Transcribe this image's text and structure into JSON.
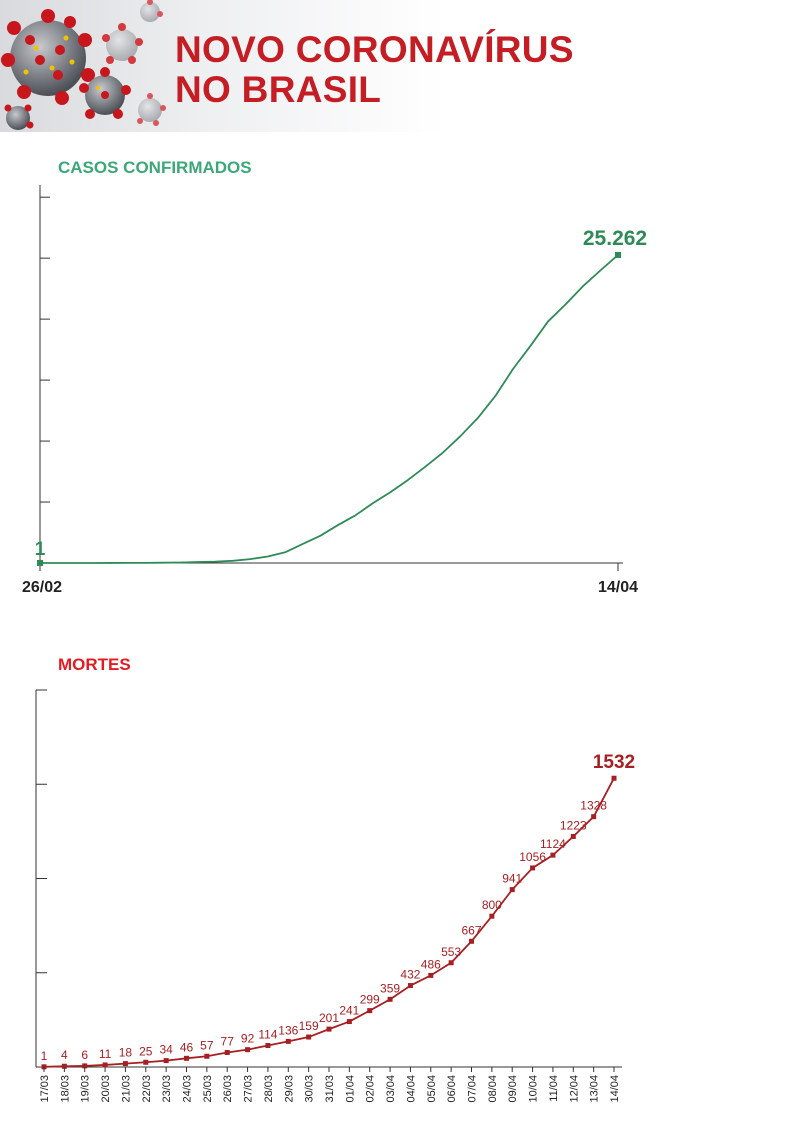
{
  "header": {
    "title_line1": "NOVO CORONAVÍRUS",
    "title_line2": "NO BRASIL"
  },
  "colors": {
    "title": "#c41e24",
    "cases": "#2e8b57",
    "cases_label": "#3aa877",
    "deaths": "#a61f23",
    "deaths_label": "#e31c24"
  },
  "icons": {
    "header_image": "coronavirus-illustration"
  },
  "chart_data": [
    {
      "type": "line",
      "title": "CASOS CONFIRMADOS",
      "x_tick_labels": [
        "26/02",
        "14/04"
      ],
      "x": [
        "26/02",
        "14/04"
      ],
      "y_first": 1,
      "y_last": 25262,
      "first_label": "1",
      "last_label": "25.262",
      "curve_y": [
        1,
        1,
        1,
        2,
        4,
        8,
        13,
        25,
        40,
        77,
        110,
        180,
        320,
        530,
        880,
        1560,
        2230,
        3100,
        3900,
        4900,
        5800,
        6800,
        7900,
        9050,
        10400,
        11900,
        13700,
        15900,
        17800,
        19800,
        21200,
        22700,
        24000,
        25262
      ],
      "ylim": [
        0,
        31000
      ],
      "y_ticks": [
        0,
        5000,
        10000,
        15000,
        20000,
        25000,
        30000
      ],
      "grid": false
    },
    {
      "type": "line",
      "title": "MORTES",
      "categories": [
        "17/03",
        "18/03",
        "19/03",
        "20/03",
        "21/03",
        "22/03",
        "23/03",
        "24/03",
        "25/03",
        "26/03",
        "27/03",
        "28/03",
        "29/03",
        "30/03",
        "31/03",
        "01/04",
        "02/04",
        "03/04",
        "04/04",
        "05/04",
        "06/04",
        "07/04",
        "08/04",
        "09/04",
        "10/04",
        "11/04",
        "12/04",
        "13/04",
        "14/04"
      ],
      "values": [
        1,
        4,
        6,
        11,
        18,
        25,
        34,
        46,
        57,
        77,
        92,
        114,
        136,
        159,
        201,
        241,
        299,
        359,
        432,
        486,
        553,
        667,
        800,
        941,
        1056,
        1124,
        1223,
        1328,
        1532
      ],
      "ylim": [
        0,
        2000
      ],
      "y_ticks": [
        0,
        500,
        1000,
        1500,
        2000
      ],
      "grid": false
    }
  ]
}
